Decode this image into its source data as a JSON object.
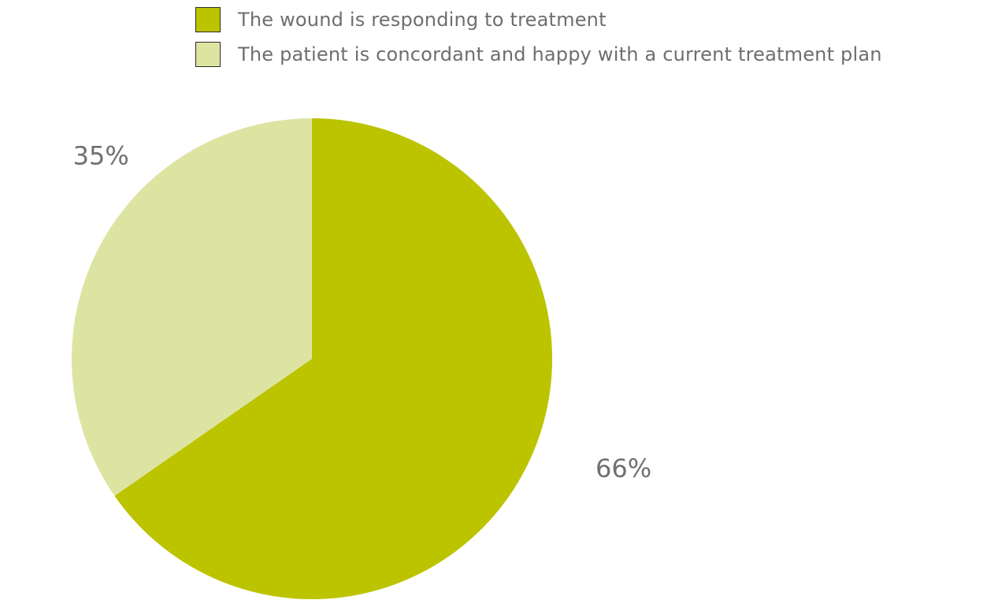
{
  "chart_data": {
    "type": "pie",
    "title": "",
    "legend_position": "top",
    "slices": [
      {
        "name": "The wound is responding to treatment",
        "value": 66,
        "label": "66%",
        "color": "#bcc400"
      },
      {
        "name": "The patient is concordant and happy with a current treatment plan",
        "value": 35,
        "label": "35%",
        "color": "#dde4a2"
      }
    ]
  }
}
